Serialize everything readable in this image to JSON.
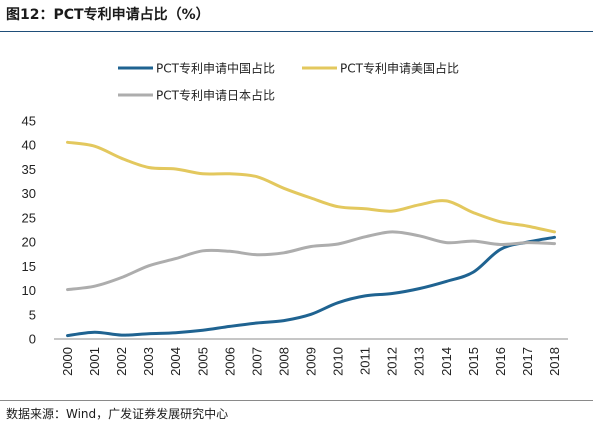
{
  "figure": {
    "title": "图12：PCT专利申请占比（%）",
    "source": "数据来源：Wind，广发证券发展研究中心"
  },
  "chart_data": {
    "type": "line",
    "title": "图12：PCT专利申请占比（%）",
    "xlabel": "",
    "ylabel": "",
    "ylim": [
      0,
      45
    ],
    "yticks": [
      0,
      5,
      10,
      15,
      20,
      25,
      30,
      35,
      40,
      45
    ],
    "x": [
      "2000",
      "2001",
      "2002",
      "2003",
      "2004",
      "2005",
      "2006",
      "2007",
      "2008",
      "2009",
      "2010",
      "2011",
      "2012",
      "2013",
      "2014",
      "2015",
      "2016",
      "2017",
      "2018"
    ],
    "grid": false,
    "legend_position": "top",
    "series": [
      {
        "name": "PCT专利申请中国占比",
        "color": "#1f6391",
        "values": [
          0.7,
          1.4,
          0.8,
          1.1,
          1.3,
          1.8,
          2.6,
          3.3,
          3.8,
          5.1,
          7.5,
          8.9,
          9.4,
          10.4,
          11.9,
          13.8,
          18.5,
          20.0,
          21.0
        ]
      },
      {
        "name": "PCT专利申请美国占比",
        "color": "#e3c85e",
        "values": [
          40.6,
          39.8,
          37.3,
          35.4,
          35.1,
          34.1,
          34.1,
          33.5,
          31.1,
          29.1,
          27.3,
          26.9,
          26.4,
          27.7,
          28.5,
          26.1,
          24.2,
          23.3,
          22.1
        ]
      },
      {
        "name": "PCT专利申请日本占比",
        "color": "#adadad",
        "values": [
          10.2,
          10.9,
          12.7,
          15.1,
          16.6,
          18.2,
          18.1,
          17.4,
          17.8,
          19.1,
          19.6,
          21.1,
          22.1,
          21.3,
          19.9,
          20.2,
          19.5,
          19.9,
          19.7
        ]
      }
    ]
  }
}
